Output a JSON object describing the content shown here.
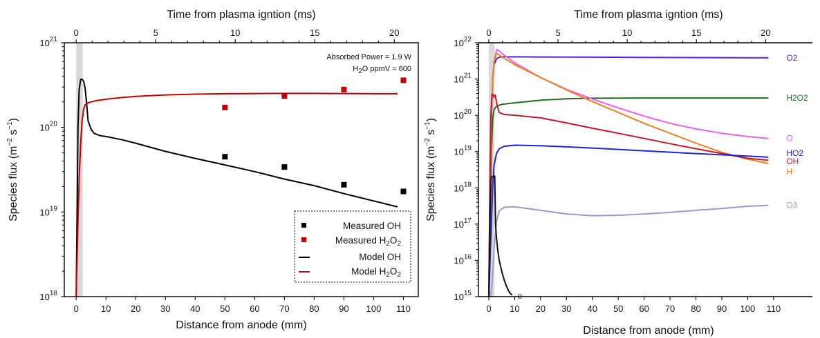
{
  "chart_data": [
    {
      "type": "line",
      "top_axis_title": "Time from plasma igntion (ms)",
      "top_ticks": [
        0,
        5,
        10,
        15,
        20
      ],
      "xlabel": "Distance from anode (mm)",
      "ylabel_parts": {
        "main": "Species flux (m",
        "sup1": "−2",
        "mid": " s",
        "sup2": "−1",
        "end": ")"
      },
      "x_ticks": [
        0,
        10,
        20,
        30,
        40,
        50,
        60,
        70,
        80,
        90,
        100,
        110
      ],
      "xlim": [
        -4,
        115
      ],
      "ylim_log10": [
        18,
        21
      ],
      "y_tick_exponents": [
        18,
        19,
        20,
        21
      ],
      "annotation_line1": "Absorbed Power = 1.9 W",
      "annotation_line2_parts": {
        "a": "H",
        "sub": "2",
        "b": "O ppmV = 600"
      },
      "legend_placement": "bottom-right",
      "legend": [
        {
          "label_parts": {
            "a": "Measured OH",
            "sub": "",
            "b": ""
          },
          "kind": "marker",
          "color": "#000000"
        },
        {
          "label_parts": {
            "a": "Measured H",
            "sub": "2",
            "b": "O",
            "sub2": "2"
          },
          "kind": "marker",
          "color": "#c00000"
        },
        {
          "label_parts": {
            "a": "Model OH",
            "sub": "",
            "b": ""
          },
          "kind": "line",
          "color": "#000000"
        },
        {
          "label_parts": {
            "a": "Model H",
            "sub": "2",
            "b": "O",
            "sub2": "2"
          },
          "kind": "line",
          "color": "#c00000"
        }
      ],
      "series": [
        {
          "name": "Model OH",
          "kind": "line",
          "color": "#000000",
          "x": [
            0.0,
            0.3,
            0.6,
            1.0,
            1.5,
            2.0,
            2.5,
            3.0,
            3.5,
            4.0,
            5.0,
            6.0,
            8.0,
            10.0,
            15.0,
            20.0,
            30.0,
            40.0,
            50.0,
            60.0,
            70.0,
            80.0,
            90.0,
            100.0,
            108.0
          ],
          "y": [
            1e+18,
            1e+19,
            1e+20,
            2.8e+20,
            3.7e+20,
            3.7e+20,
            3.5e+20,
            2.9e+20,
            1.9e+20,
            1.2e+20,
            9.5e+19,
            8.5e+19,
            8e+19,
            7.8e+19,
            7.2e+19,
            6.5e+19,
            5.2e+19,
            4.3e+19,
            3.6e+19,
            3e+19,
            2.45e+19,
            2.05e+19,
            1.65e+19,
            1.35e+19,
            1.15e+19
          ]
        },
        {
          "name": "Model H2O2",
          "kind": "line",
          "color": "#c00000",
          "x": [
            0.0,
            0.5,
            1.0,
            1.5,
            2.0,
            2.5,
            3.0,
            4.0,
            5.0,
            7.0,
            10.0,
            15.0,
            20.0,
            30.0,
            40.0,
            50.0,
            60.0,
            70.0,
            80.0,
            90.0,
            100.0,
            108.0
          ],
          "y": [
            1e+18,
            6e+18,
            2.5e+19,
            6.5e+19,
            1.2e+20,
            1.65e+20,
            1.85e+20,
            1.95e+20,
            2e+20,
            2.08e+20,
            2.15e+20,
            2.25e+20,
            2.32e+20,
            2.42e+20,
            2.47e+20,
            2.5e+20,
            2.51e+20,
            2.52e+20,
            2.52e+20,
            2.51e+20,
            2.5e+20,
            2.5e+20
          ]
        },
        {
          "name": "Measured OH",
          "kind": "marker",
          "color": "#000000",
          "x": [
            50,
            70,
            90,
            110
          ],
          "y": [
            4.5e+19,
            3.4e+19,
            2.1e+19,
            1.75e+19
          ]
        },
        {
          "name": "Measured H2O2",
          "kind": "marker",
          "color": "#c00000",
          "x": [
            50,
            70,
            90,
            110
          ],
          "y": [
            1.72e+20,
            2.35e+20,
            2.8e+20,
            3.6e+20
          ]
        }
      ]
    },
    {
      "type": "line",
      "top_axis_title": "Time from plasma igntion (ms)",
      "top_ticks": [
        0,
        5,
        10,
        15,
        20
      ],
      "xlabel": "Distance from anode (mm)",
      "ylabel_parts": {
        "main": "Species flux (m",
        "sup1": "−2",
        "mid": " s",
        "sup2": "−1",
        "end": ")"
      },
      "x_ticks": [
        0,
        10,
        20,
        30,
        40,
        50,
        60,
        70,
        80,
        90,
        100,
        110
      ],
      "xlim": [
        -4,
        125
      ],
      "ylim_log10": [
        15,
        22
      ],
      "y_tick_exponents": [
        15,
        16,
        17,
        18,
        19,
        20,
        21,
        22
      ],
      "series": [
        {
          "name": "O2",
          "color": "#5a1fd6",
          "x": [
            0.0,
            0.5,
            1.0,
            1.5,
            2.0,
            3.0,
            4.0,
            6.0,
            10.0,
            20.0,
            40.0,
            60.0,
            80.0,
            100.0,
            108.0
          ],
          "y": [
            1000000000000000.0,
            1e+18,
            1e+20,
            1e+21,
            2.5e+21,
            3.6e+21,
            4e+21,
            4.1e+21,
            4.1e+21,
            4.05e+21,
            4e+21,
            3.95e+21,
            3.9e+21,
            3.85e+21,
            3.85e+21
          ]
        },
        {
          "name": "H2O2",
          "color": "#1f6e1f",
          "x": [
            0.0,
            0.5,
            1.0,
            1.5,
            2.0,
            3.0,
            5.0,
            10.0,
            20.0,
            30.0,
            40.0,
            60.0,
            80.0,
            100.0,
            108.0
          ],
          "y": [
            1000000000000000.0,
            1e+17,
            1e+19,
            8e+19,
            1.4e+20,
            1.8e+20,
            2e+20,
            2.2e+20,
            2.6e+20,
            2.85e+20,
            2.95e+20,
            3e+20,
            3e+20,
            3e+20,
            3e+20
          ]
        },
        {
          "name": "O",
          "color": "#f05cf0",
          "x": [
            0.0,
            0.5,
            1.0,
            1.5,
            2.0,
            3.0,
            4.0,
            6.0,
            10.0,
            20.0,
            30.0,
            40.0,
            50.0,
            60.0,
            70.0,
            80.0,
            90.0,
            100.0,
            108.0
          ],
          "y": [
            1000000000000000.0,
            1e+18,
            1e+20,
            8e+20,
            3e+21,
            6.5e+21,
            6e+21,
            4.5e+21,
            2.8e+21,
            1.1e+21,
            5.2e+20,
            2.8e+20,
            1.6e+20,
            9.5e+19,
            6e+19,
            4.2e+19,
            3.2e+19,
            2.6e+19,
            2.3e+19
          ]
        },
        {
          "name": "H",
          "color": "#f08020",
          "x": [
            0.0,
            0.5,
            1.0,
            1.5,
            2.0,
            3.0,
            4.0,
            6.0,
            10.0,
            20.0,
            30.0,
            40.0,
            50.0,
            60.0,
            70.0,
            80.0,
            90.0,
            100.0,
            108.0
          ],
          "y": [
            1000000000000000.0,
            1e+18,
            1e+20,
            1e+21,
            3e+21,
            5e+21,
            4.6e+21,
            3.7e+21,
            2.5e+21,
            1.1e+21,
            5e+20,
            2.4e+20,
            1.2e+20,
            6e+19,
            3.2e+19,
            1.7e+19,
            9.5e+18,
            6.2e+18,
            4.7e+18
          ]
        },
        {
          "name": "OH",
          "color": "#c0182a",
          "x": [
            0.0,
            0.4,
            0.8,
            1.2,
            1.6,
            2.0,
            2.5,
            3.0,
            4.0,
            6.0,
            10.0,
            20.0,
            30.0,
            40.0,
            50.0,
            60.0,
            70.0,
            80.0,
            90.0,
            100.0,
            108.0
          ],
          "y": [
            1000000000000000.0,
            1e+18,
            1e+20,
            3.8e+20,
            3.8e+20,
            3.2e+20,
            3.6e+20,
            2.2e+20,
            1.2e+20,
            1.05e+20,
            1e+20,
            8.5e+19,
            6.2e+19,
            4.4e+19,
            3.2e+19,
            2.3e+19,
            1.65e+19,
            1.2e+19,
            8.8e+18,
            6.5e+18,
            5.8e+18
          ]
        },
        {
          "name": "HO2",
          "color": "#1b24d8",
          "x": [
            0.0,
            0.5,
            1.0,
            1.5,
            2.0,
            3.0,
            4.0,
            6.0,
            10.0,
            20.0,
            30.0,
            40.0,
            60.0,
            80.0,
            100.0,
            108.0
          ],
          "y": [
            1000000000000000.0,
            1e+16,
            1e+17,
            1e+18,
            4e+18,
            9e+18,
            1.2e+19,
            1.4e+19,
            1.5e+19,
            1.45e+19,
            1.35e+19,
            1.25e+19,
            1.05e+19,
            8.8e+18,
            7.5e+18,
            7e+18
          ]
        },
        {
          "name": "O3",
          "color": "#9a9ac8",
          "x": [
            0.0,
            0.5,
            1.0,
            1.5,
            2.0,
            3.0,
            4.0,
            6.0,
            10.0,
            20.0,
            30.0,
            40.0,
            50.0,
            60.0,
            70.0,
            80.0,
            90.0,
            100.0,
            108.0
          ],
          "y": [
            1000000000000000.0,
            1000000000000000.0,
            1300000000000000.0,
            4000000000000000.0,
            2e+16,
            1.2e+17,
            2.3e+17,
            2.9e+17,
            3e+17,
            2.4e+17,
            1.9e+17,
            1.7e+17,
            1.75e+17,
            1.9e+17,
            2.1e+17,
            2.4e+17,
            2.7e+17,
            3.1e+17,
            3.3e+17
          ]
        },
        {
          "name": "e",
          "color": "#111111",
          "x": [
            0.0,
            0.4,
            0.8,
            1.0,
            1.5,
            2.0,
            2.3,
            2.6,
            3.0,
            3.5,
            4.0,
            5.0,
            6.0,
            7.0,
            8.0,
            9.0
          ],
          "y": [
            1000000000000000.0,
            1e+17,
            1.5e+18,
            2e+18,
            2e+18,
            2.1e+18,
            2.1e+18,
            1e+17,
            4e+16,
            1.8e+16,
            1e+16,
            5000000000000000.0,
            2800000000000000.0,
            1800000000000000.0,
            1300000000000000.0,
            1100000000000000.0
          ]
        }
      ]
    }
  ]
}
